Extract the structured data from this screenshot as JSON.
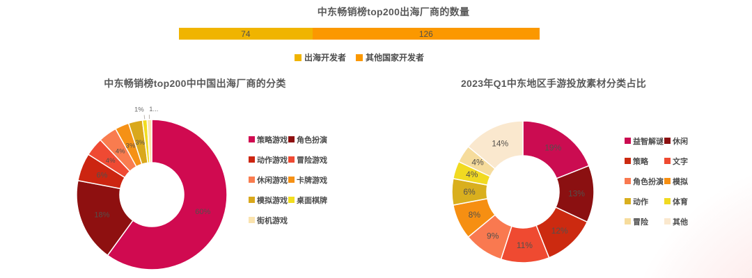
{
  "chart_data": [
    {
      "id": "mena_top200_publisher_count",
      "type": "bar",
      "subtype": "horizontal-stacked",
      "title": "中东畅销榜top200出海厂商的数量",
      "total": 200,
      "x_range": [
        0,
        200
      ],
      "legend_position": "bottom",
      "series": [
        {
          "name": "出海开发者",
          "value": 74,
          "color": "#F0B400"
        },
        {
          "name": "其他国家开发者",
          "value": 126,
          "color": "#FB9800"
        }
      ]
    },
    {
      "id": "cn_publisher_game_category",
      "type": "pie",
      "subtype": "donut",
      "title": "中东畅销榜top200中中国出海厂商的分类",
      "legend_position": "right",
      "unit": "%",
      "series": [
        {
          "name": "策略游戏",
          "value": 60,
          "label": "60%",
          "color": "#D00A50"
        },
        {
          "name": "角色扮演",
          "value": 18,
          "label": "18%",
          "color": "#8E1010"
        },
        {
          "name": "动作游戏",
          "value": 6,
          "label": "6%",
          "color": "#CC2511"
        },
        {
          "name": "冒险游戏",
          "value": 4,
          "label": "4%",
          "color": "#EF4A33"
        },
        {
          "name": "休闲游戏",
          "value": 4,
          "label": "4%",
          "color": "#F97C4F"
        },
        {
          "name": "卡牌游戏",
          "value": 3,
          "label": "3%",
          "color": "#F59116"
        },
        {
          "name": "模拟游戏",
          "value": 3,
          "label": "3%",
          "color": "#D9A81C"
        },
        {
          "name": "桌面棋牌",
          "value": 1,
          "label": "1%",
          "color": "#F2DD20",
          "label_outside": true
        },
        {
          "name": "街机游戏",
          "value": 1,
          "label": "1...",
          "color": "#FAE3AE",
          "label_outside": true
        }
      ]
    },
    {
      "id": "q1_2023_ad_creative_category",
      "type": "pie",
      "subtype": "donut",
      "title": "2023年Q1中东地区手游投放素材分类占比",
      "legend_position": "right",
      "unit": "%",
      "series": [
        {
          "name": "益智解谜",
          "value": 19,
          "label": "19%",
          "color": "#CB0C51"
        },
        {
          "name": "休闲",
          "value": 13,
          "label": "13%",
          "color": "#8B1011"
        },
        {
          "name": "策略",
          "value": 12,
          "label": "12%",
          "color": "#CC2A10"
        },
        {
          "name": "文字",
          "value": 11,
          "label": "11%",
          "color": "#EF4A31"
        },
        {
          "name": "角色扮演",
          "value": 9,
          "label": "9%",
          "color": "#F97950"
        },
        {
          "name": "模拟",
          "value": 8,
          "label": "8%",
          "color": "#F68F12"
        },
        {
          "name": "动作",
          "value": 6,
          "label": "6%",
          "color": "#D9AF1E"
        },
        {
          "name": "体育",
          "value": 4,
          "label": "4%",
          "color": "#F1DA21"
        },
        {
          "name": "冒险",
          "value": 4,
          "label": "4%",
          "color": "#F6DC9C"
        },
        {
          "name": "其他",
          "value": 14,
          "label": "14%",
          "color": "#FAE8CE"
        }
      ]
    }
  ],
  "colors": {
    "title_text": "#595959",
    "legend_text": "#4c4c4c",
    "slice_label_text": "#54504c",
    "corner_glow": "#F39494"
  }
}
